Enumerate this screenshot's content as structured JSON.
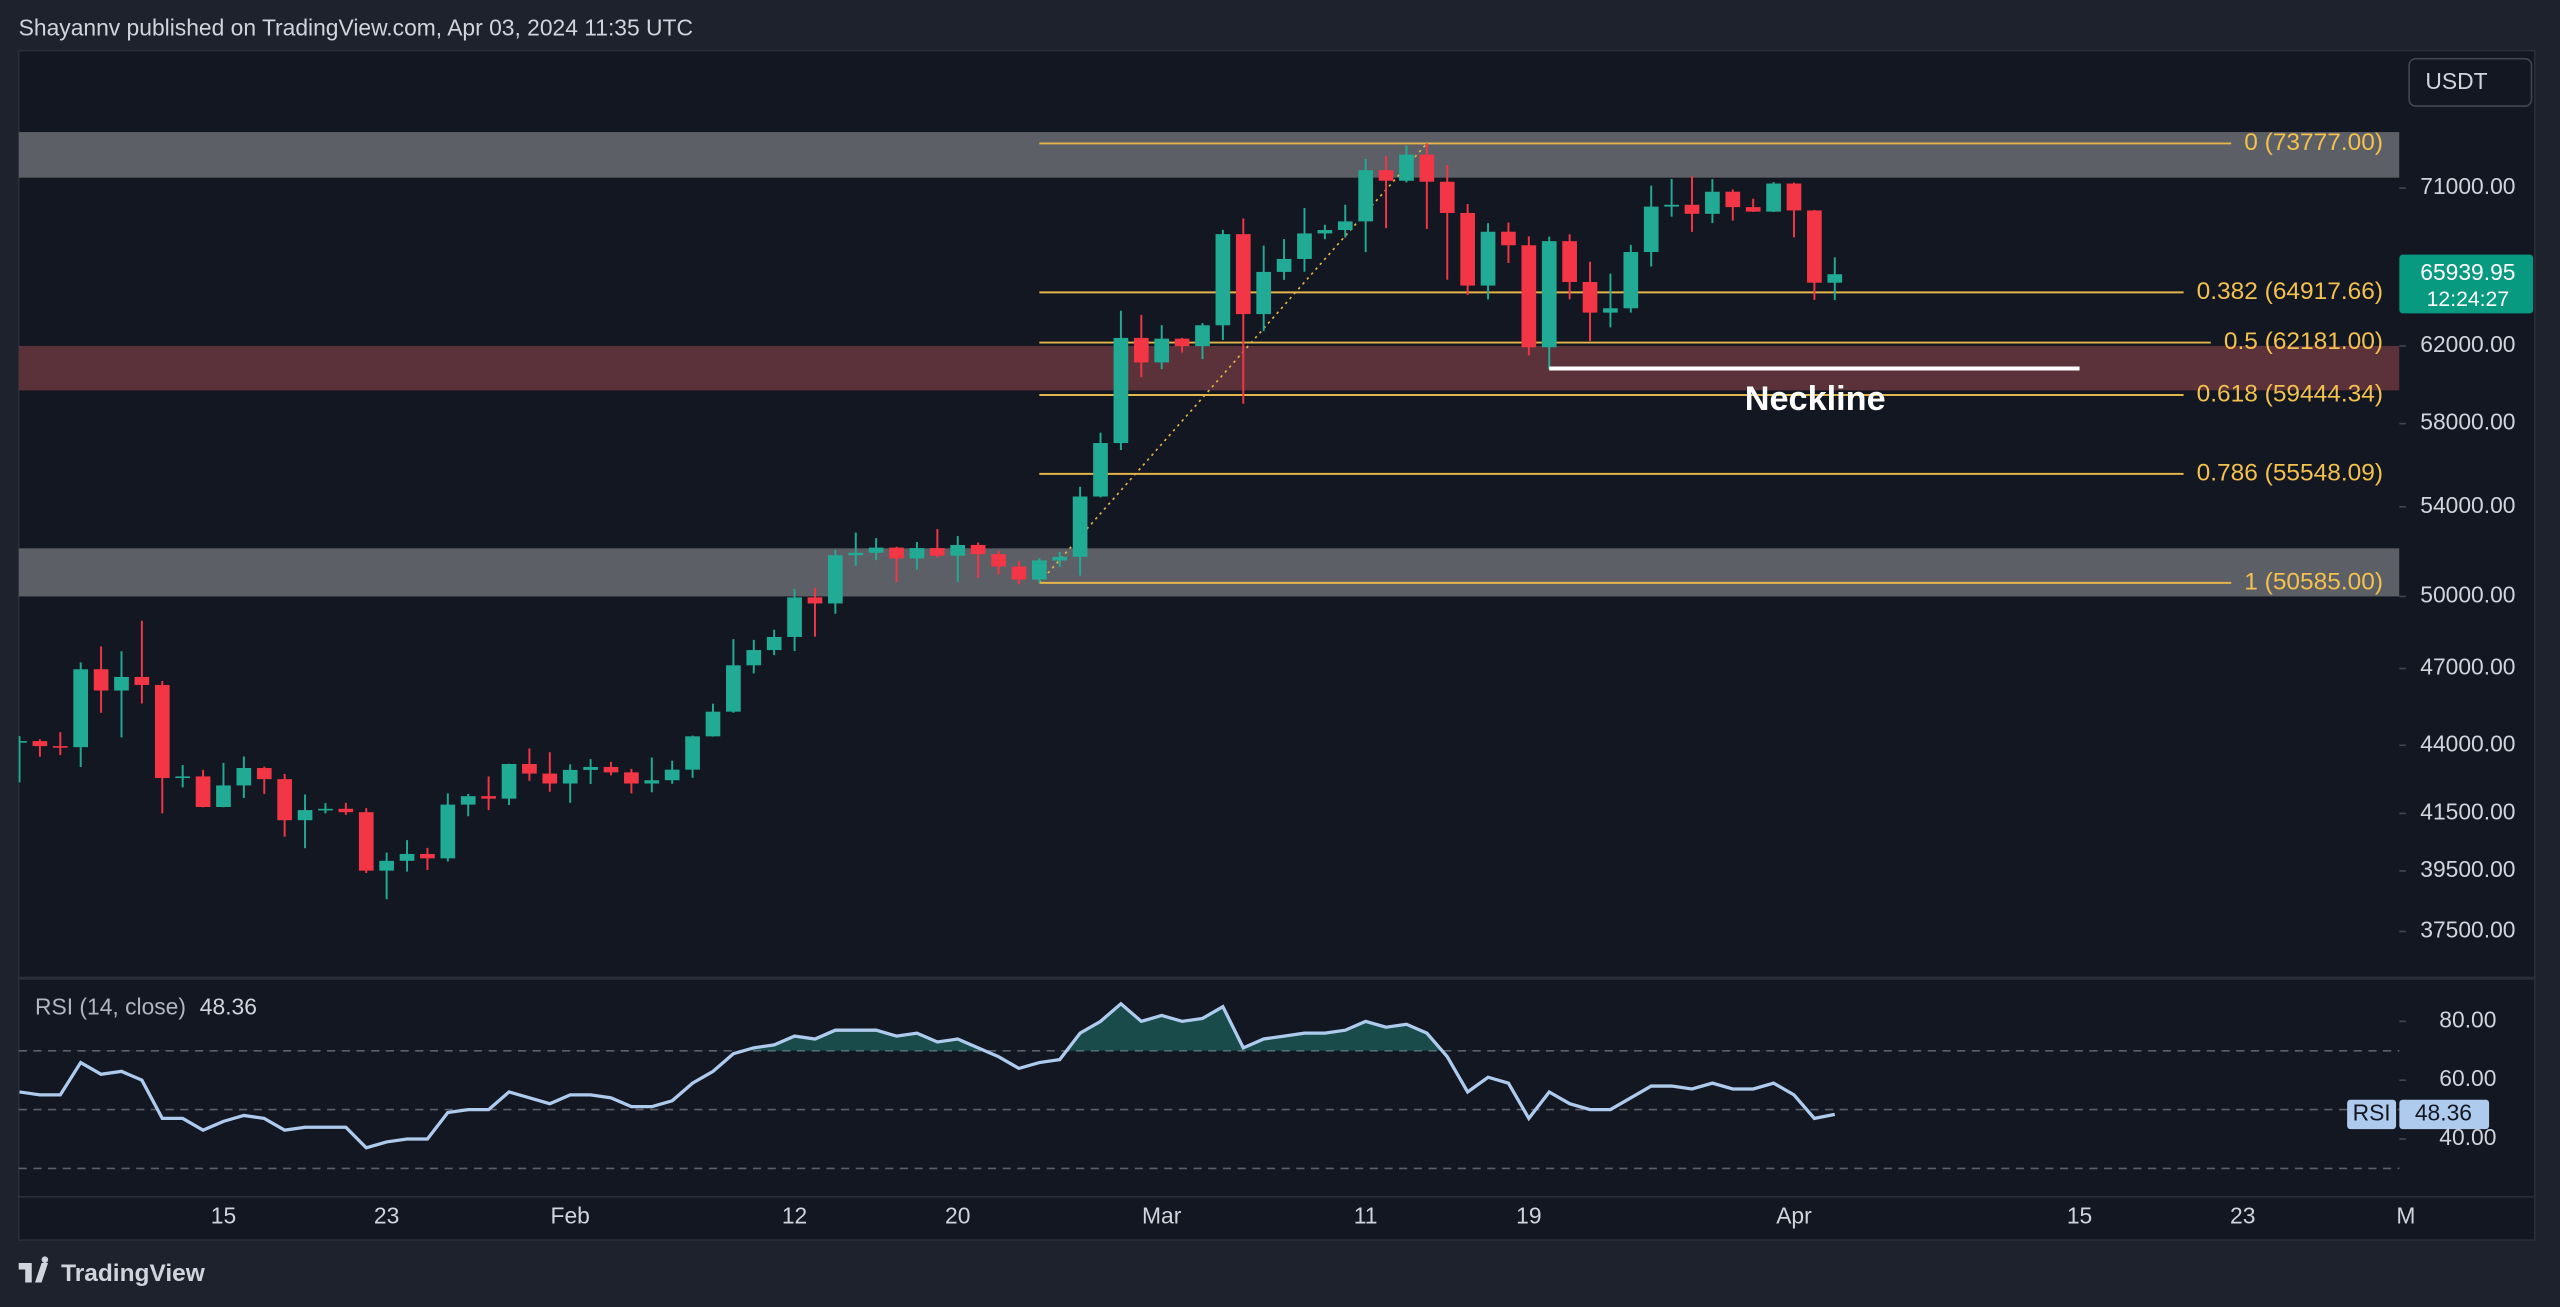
{
  "header": "Shayannv published on TradingView.com, Apr 03, 2024 11:35 UTC",
  "footer": "TradingView",
  "currency": "USDT",
  "chart_data": [
    {
      "type": "candlestick",
      "log_scale": true,
      "up_color": "#22ab94",
      "down_color": "#f23645",
      "categories": [
        null,
        null,
        null,
        null,
        null,
        null,
        null,
        null,
        null,
        null,
        "15",
        null,
        null,
        null,
        null,
        null,
        null,
        null,
        "23",
        null,
        null,
        null,
        null,
        null,
        null,
        null,
        null,
        "Feb",
        null,
        null,
        null,
        null,
        null,
        null,
        null,
        null,
        null,
        null,
        "12",
        null,
        null,
        null,
        null,
        null,
        null,
        null,
        "20",
        null,
        null,
        null,
        null,
        null,
        null,
        null,
        null,
        null,
        "Mar",
        null,
        null,
        null,
        null,
        null,
        null,
        null,
        null,
        null,
        "11",
        null,
        null,
        null,
        null,
        null,
        null,
        null,
        "19",
        null,
        null,
        null,
        null,
        null,
        null,
        null,
        null,
        null,
        null,
        null,
        null,
        "Apr",
        null,
        null,
        null,
        null,
        null,
        null,
        null,
        null,
        null,
        null,
        null,
        null,
        null,
        "15",
        null,
        null,
        null,
        null,
        null,
        null,
        null,
        "23",
        null,
        null,
        null,
        null,
        null,
        null,
        null,
        "M"
      ],
      "open": [
        44150,
        44160,
        43970,
        43930,
        46970,
        46120,
        46660,
        46340,
        42780,
        42840,
        41730,
        42510,
        43150,
        42740,
        41260,
        41620,
        41665,
        41545,
        39510,
        39845,
        40080,
        39930,
        41815,
        42120,
        42030,
        43300,
        42945,
        42580,
        43080,
        43190,
        42990,
        42580,
        42700,
        43090,
        44340,
        45290,
        47130,
        47750,
        48290,
        49960,
        49700,
        51800,
        51910,
        52140,
        51660,
        52120,
        51780,
        52260,
        51850,
        51300,
        50730,
        51570,
        51730,
        54480,
        57040,
        62430,
        61130,
        62390,
        61990,
        63110,
        68250,
        63720,
        66070,
        66810,
        68290,
        68490,
        69000,
        72100,
        71450,
        73070,
        71390,
        69500,
        65300,
        68390,
        67600,
        61930,
        67840,
        65500,
        63800,
        64040,
        67210,
        69880,
        69990,
        69450,
        70780,
        69850,
        69580,
        71280,
        69650,
        65460,
        null,
        null,
        null,
        null,
        null,
        null,
        null,
        null,
        null,
        null,
        null,
        null,
        null,
        null,
        null,
        null,
        null,
        null,
        null,
        null,
        null,
        null,
        null,
        null,
        null,
        null,
        null,
        null
      ],
      "high": [
        44350,
        44230,
        44500,
        47250,
        47900,
        47700,
        48970,
        46500,
        43260,
        43080,
        43340,
        43580,
        43200,
        42930,
        42180,
        41870,
        41880,
        41690,
        40130,
        40560,
        40290,
        42220,
        42200,
        42840,
        43310,
        43880,
        43740,
        43290,
        43480,
        43380,
        43120,
        43540,
        43420,
        44370,
        45600,
        48200,
        48170,
        48590,
        50330,
        50370,
        52040,
        52820,
        52570,
        52180,
        52390,
        52980,
        52660,
        52370,
        52000,
        51550,
        51680,
        51950,
        54940,
        57550,
        63900,
        63680,
        63120,
        62430,
        63230,
        68500,
        69170,
        67580,
        67960,
        69800,
        68800,
        69990,
        72800,
        73000,
        73650,
        73777,
        72420,
        70040,
        68900,
        68930,
        68120,
        68100,
        68240,
        66650,
        65970,
        67620,
        71150,
        71560,
        71730,
        71550,
        70920,
        70350,
        71370,
        71340,
        69680,
        66900,
        null,
        null,
        null,
        null,
        null,
        null,
        null,
        null,
        null,
        null,
        null,
        null,
        null,
        null,
        null,
        null,
        null,
        null,
        null,
        null,
        null,
        null,
        null,
        null,
        null,
        null,
        null,
        null
      ],
      "low": [
        42620,
        43570,
        43630,
        43190,
        45250,
        44300,
        45610,
        41500,
        42440,
        41720,
        41720,
        42050,
        42200,
        40680,
        40280,
        41500,
        41450,
        39430,
        38550,
        39480,
        39530,
        39820,
        41400,
        41620,
        41800,
        42680,
        42280,
        41880,
        42560,
        42880,
        42220,
        42260,
        42570,
        42790,
        44330,
        45250,
        46800,
        47540,
        47710,
        48300,
        49260,
        51330,
        51580,
        50620,
        51160,
        51700,
        50630,
        50800,
        50950,
        50520,
        50590,
        51280,
        50900,
        54440,
        56700,
        60360,
        60780,
        61650,
        61300,
        62320,
        59000,
        62790,
        65620,
        66080,
        67950,
        68050,
        67200,
        68600,
        71350,
        68550,
        65630,
        64780,
        64520,
        66580,
        61500,
        60775,
        64530,
        62260,
        63000,
        63800,
        66380,
        69280,
        68380,
        68900,
        69050,
        69560,
        69560,
        68060,
        64500,
        64490,
        null,
        null,
        null,
        null,
        null,
        null,
        null,
        null,
        null,
        null,
        null,
        null,
        null,
        null,
        null,
        null,
        null,
        null,
        null,
        null,
        null,
        null,
        null,
        null,
        null,
        null,
        null,
        null
      ],
      "close": [
        44160,
        43970,
        43930,
        46970,
        46120,
        46660,
        46340,
        42780,
        42840,
        41730,
        42510,
        43150,
        42740,
        41260,
        41620,
        41665,
        41545,
        39510,
        39845,
        40080,
        39930,
        41815,
        42120,
        42030,
        43300,
        42945,
        42580,
        43080,
        43190,
        42990,
        42580,
        42700,
        43090,
        44340,
        45290,
        47130,
        47750,
        48290,
        49960,
        49700,
        51800,
        51910,
        52140,
        51660,
        52120,
        51780,
        52260,
        51850,
        51300,
        50730,
        51570,
        51730,
        54480,
        57040,
        62430,
        61130,
        62390,
        61990,
        63110,
        68250,
        63720,
        66070,
        66810,
        68290,
        68490,
        69000,
        72100,
        71450,
        73070,
        71390,
        69500,
        65300,
        68390,
        67600,
        61930,
        67840,
        65500,
        63800,
        64040,
        67210,
        69880,
        69990,
        69450,
        70780,
        69850,
        69580,
        71280,
        69650,
        65460,
        65940,
        null,
        null,
        null,
        null,
        null,
        null,
        null,
        null,
        null,
        null,
        null,
        null,
        null,
        null,
        null,
        null,
        null,
        null,
        null,
        null,
        null,
        null,
        null,
        null,
        null,
        null,
        null,
        null
      ],
      "ylim": [
        36100,
        79900
      ],
      "yticks": [
        {
          "value": 71000,
          "label": "71000.00"
        },
        {
          "value": 62000,
          "label": "62000.00"
        },
        {
          "value": 58000,
          "label": "58000.00"
        },
        {
          "value": 54000,
          "label": "54000.00"
        },
        {
          "value": 50000,
          "label": "50000.00"
        },
        {
          "value": 47000,
          "label": "47000.00"
        },
        {
          "value": 44000,
          "label": "44000.00"
        },
        {
          "value": 41500,
          "label": "41500.00"
        },
        {
          "value": 39500,
          "label": "39500.00"
        },
        {
          "value": 37500,
          "label": "37500.00"
        }
      ],
      "zones": [
        {
          "range": [
            71640,
            74500
          ],
          "color": "#5d5f66"
        },
        {
          "range": [
            59680,
            62000
          ],
          "color": "#5b313a"
        },
        {
          "range": [
            50000,
            52110
          ],
          "color": "#5d5f66"
        }
      ],
      "fib_color": "#e3b54a",
      "fib_levels": [
        {
          "value": 73777,
          "label": "0 (73777.00)"
        },
        {
          "value": 64917.66,
          "label": "0.382 (64917.66)"
        },
        {
          "value": 62181,
          "label": "0.5 (62181.00)"
        },
        {
          "value": 59444.34,
          "label": "0.618 (59444.34)"
        },
        {
          "value": 55548.09,
          "label": "0.786 (55548.09)"
        },
        {
          "value": 50585,
          "label": "1 (50585.00)"
        }
      ],
      "neckline": {
        "value": 60810,
        "label": "Neckline",
        "color": "#ffffff"
      },
      "last_price": 65939.95,
      "countdown": "12:24:27"
    },
    {
      "type": "line",
      "title": "RSI (14, close)",
      "tag": "RSI",
      "color": "#aecbee",
      "values": [
        56,
        55,
        55,
        66,
        62,
        63,
        60,
        47,
        47,
        43,
        46,
        48,
        47,
        43,
        44,
        44,
        44,
        37,
        39,
        40,
        40,
        49,
        50,
        50,
        56,
        54,
        52,
        55,
        55,
        54,
        51,
        51,
        53,
        59,
        63,
        69,
        71,
        72,
        75,
        74,
        77,
        77,
        77,
        75,
        76,
        73,
        74,
        71,
        68,
        64,
        66,
        67,
        76,
        80,
        86,
        80,
        82,
        80,
        81,
        85,
        71,
        74,
        75,
        76,
        76,
        77,
        80,
        78,
        79,
        76,
        68,
        56,
        61,
        59,
        47,
        56,
        52,
        50,
        50,
        54,
        58,
        58,
        57,
        59,
        57,
        57,
        59,
        55,
        47,
        48.36,
        null,
        null,
        null,
        null,
        null,
        null,
        null,
        null,
        null,
        null,
        null,
        null,
        null,
        null,
        null,
        null,
        null,
        null,
        null,
        null,
        null,
        null,
        null,
        null,
        null,
        null,
        null,
        null
      ],
      "ylim": [
        20.6,
        94.4
      ],
      "yticks": [
        {
          "value": 80,
          "label": "80.00"
        },
        {
          "value": 60,
          "label": "60.00"
        },
        {
          "value": 40,
          "label": "40.00"
        }
      ],
      "bands": [
        70,
        50,
        30
      ]
    }
  ]
}
